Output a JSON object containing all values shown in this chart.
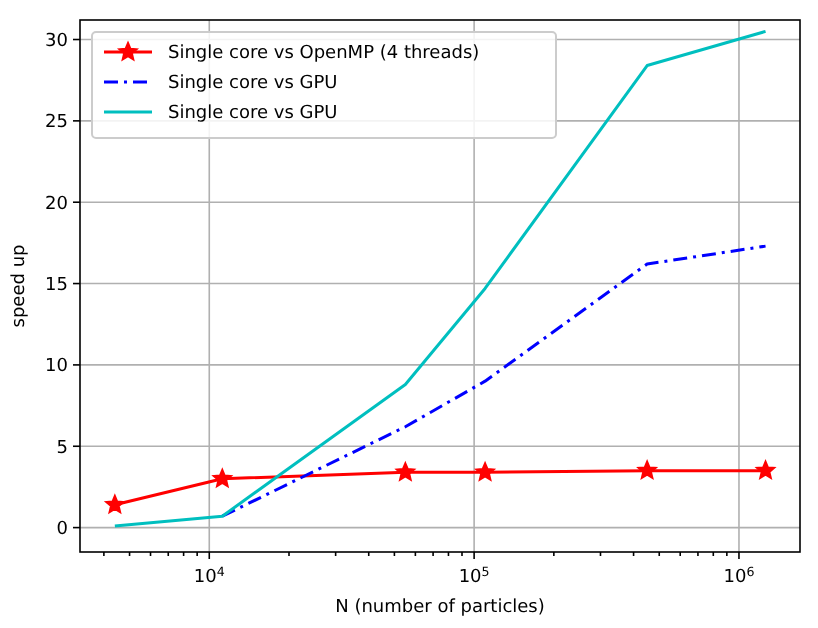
{
  "chart_data": {
    "type": "line",
    "xlabel": "N (number of particles)",
    "ylabel": "speed up",
    "log": "x",
    "grid": true,
    "legend": "top left",
    "x": [
      4400,
      11200,
      55000,
      110000,
      450000,
      1260000
    ],
    "xlim": [
      3250,
      1700000
    ],
    "ylim": [
      -1.5,
      31.2
    ],
    "yticks": [
      0,
      5,
      10,
      15,
      20,
      25,
      30
    ],
    "xticks": [
      {
        "value": 4000,
        "label": null
      },
      {
        "value": 5000,
        "label": null
      },
      {
        "value": 6000,
        "label": null
      },
      {
        "value": 7000,
        "label": null
      },
      {
        "value": 8000,
        "label": null
      },
      {
        "value": 9000,
        "label": null
      },
      {
        "value": 10000,
        "label": "10$^{4}$"
      },
      {
        "value": 20000,
        "label": null
      },
      {
        "value": 30000,
        "label": null
      },
      {
        "value": 40000,
        "label": null
      },
      {
        "value": 50000,
        "label": null
      },
      {
        "value": 60000,
        "label": null
      },
      {
        "value": 70000,
        "label": null
      },
      {
        "value": 80000,
        "label": null
      },
      {
        "value": 90000,
        "label": null
      },
      {
        "value": 100000,
        "label": "10$^{5}$"
      },
      {
        "value": 200000,
        "label": null
      },
      {
        "value": 300000,
        "label": null
      },
      {
        "value": 400000,
        "label": null
      },
      {
        "value": 500000,
        "label": null
      },
      {
        "value": 600000,
        "label": null
      },
      {
        "value": 700000,
        "label": null
      },
      {
        "value": 800000,
        "label": null
      },
      {
        "value": 900000,
        "label": null
      },
      {
        "value": 1000000,
        "label": "10$^{6}$"
      }
    ],
    "series": [
      {
        "name": "Single core vs OpenMP (4 threads)",
        "color": "#ff0000",
        "marker": "star",
        "line_style": "solid",
        "values": [
          1.4,
          3.0,
          3.4,
          3.4,
          3.5,
          3.5
        ]
      },
      {
        "name": "Single core vs GPU",
        "color": "#0000ff",
        "marker": "none",
        "line_style": "dashdot",
        "values": [
          null,
          0.7,
          6.2,
          9.0,
          16.2,
          17.3
        ]
      },
      {
        "name": "Single core vs GPU",
        "color": "#00bfbf",
        "marker": "none",
        "line_style": "solid",
        "values": [
          0.1,
          0.7,
          8.8,
          14.7,
          28.4,
          30.5
        ]
      }
    ]
  }
}
